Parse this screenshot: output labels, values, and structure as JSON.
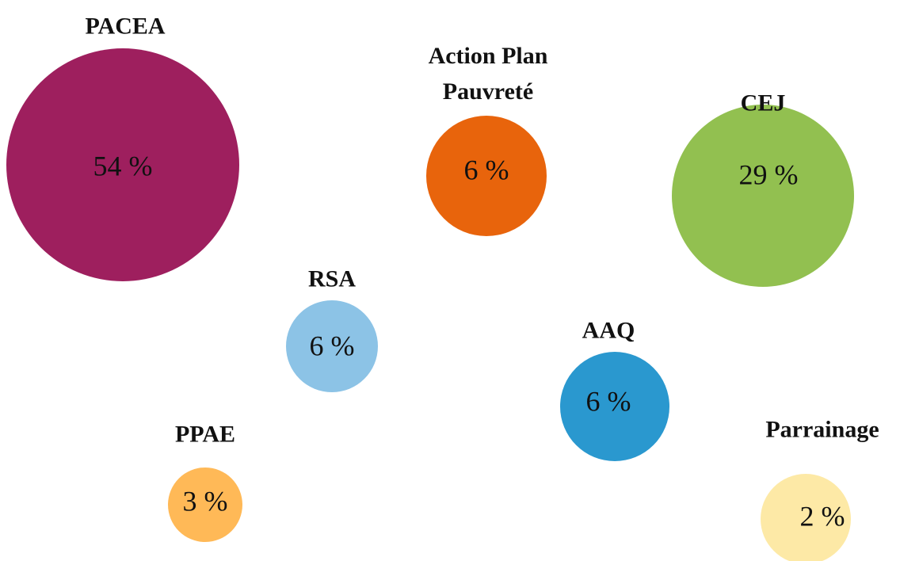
{
  "chart_data": {
    "type": "bubble",
    "categories": [
      "PACEA",
      "Action Plan Pauvreté",
      "CEJ",
      "RSA",
      "AAQ",
      "PPAE",
      "Parrainage"
    ],
    "values": [
      54,
      6,
      29,
      6,
      6,
      3,
      2
    ],
    "value_labels": [
      "54 %",
      "6 %",
      "29 %",
      "6 %",
      "6 %",
      "3 %",
      "2 %"
    ],
    "colors": [
      "#9e1f5e",
      "#e8640c",
      "#92c050",
      "#8cc3e6",
      "#2a98cf",
      "#ffb957",
      "#fde9a6"
    ]
  }
}
